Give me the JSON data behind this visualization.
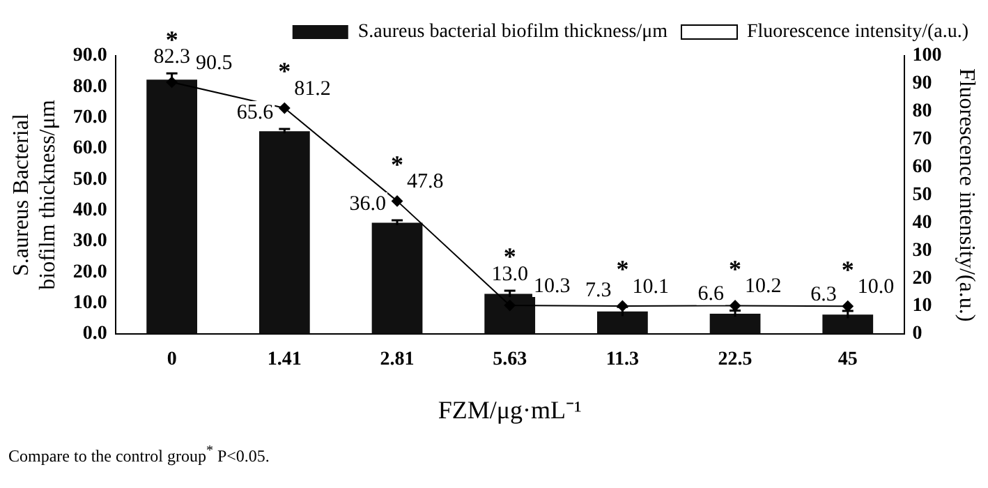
{
  "chart_data": {
    "type": "bar",
    "xlabel": "FZM/μg·mL⁻¹",
    "ylabel": "S.aureus Bacterial biofilm thickness/μm",
    "y2label": "Fluorescence intensity/(a.u.)",
    "categories": [
      "0",
      "1.41",
      "2.81",
      "5.63",
      "11.3",
      "22.5",
      "45"
    ],
    "series": [
      {
        "name": "S.aureus bacterial biofilm thickness/μm",
        "color": "#111111",
        "values": [
          82.3,
          65.6,
          36.0,
          13.0,
          7.3,
          6.6,
          6.3
        ],
        "value_labels": [
          "82.3",
          "65.6",
          "36.0",
          "13.0",
          "7.3",
          "6.6",
          "6.3"
        ],
        "errors": [
          2,
          0.7,
          0.8,
          1,
          1.5,
          1,
          1.2
        ]
      },
      {
        "name": "Fluorescence intensity/(a.u.)",
        "type": "line",
        "axis": "y2",
        "color": "#000000",
        "values": [
          90.5,
          81.2,
          47.8,
          10.3,
          10.1,
          10.2,
          10.0
        ],
        "value_labels": [
          "90.5",
          "81.2",
          "47.8",
          "10.3",
          "10.1",
          "10.2",
          "10.0"
        ]
      }
    ],
    "marker": "diamond",
    "line_style": "solid",
    "grid": false,
    "legend": "top right",
    "ylim": [
      0,
      90
    ],
    "yticks": [
      {
        "value": 0,
        "label": "0.0"
      },
      {
        "value": 10,
        "label": "10.0"
      },
      {
        "value": 20,
        "label": "20.0"
      },
      {
        "value": 30,
        "label": "30.0"
      },
      {
        "value": 40,
        "label": "40.0"
      },
      {
        "value": 50,
        "label": "50.0"
      },
      {
        "value": 60,
        "label": "60.0"
      },
      {
        "value": 70,
        "label": "70.0"
      },
      {
        "value": 80,
        "label": "80.0"
      },
      {
        "value": 90,
        "label": "90.0"
      }
    ],
    "y2lim": [
      0,
      100
    ],
    "y2ticks": [
      0,
      10,
      20,
      30,
      40,
      50,
      60,
      70,
      80,
      90,
      100
    ],
    "annotations": [
      "*",
      "*",
      "*",
      "*",
      "*",
      "*",
      "*",
      "Compare to the control group$^{*}$ P<0.05."
    ]
  }
}
